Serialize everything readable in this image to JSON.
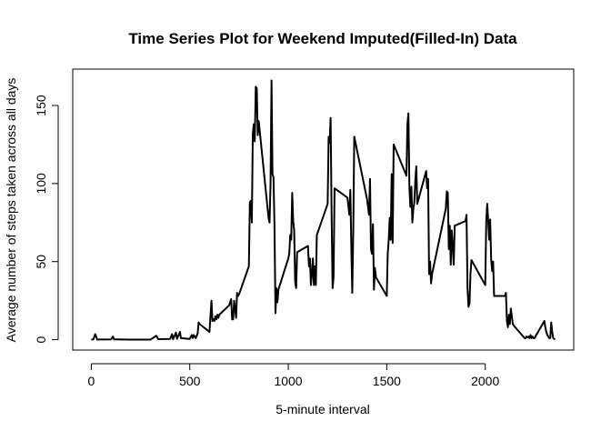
{
  "chart_data": {
    "type": "line",
    "title": "Time Series Plot for Weekend Imputed(Filled-In) Data",
    "xlabel": "5-minute interval",
    "ylabel": "Average number of steps taken across all days",
    "color": "#000000",
    "xlim": [
      -94.2,
      2449.2
    ],
    "ylim": [
      -6.66,
      173.3
    ],
    "xticks": [
      0,
      500,
      1000,
      1500,
      2000
    ],
    "yticks": [
      0,
      50,
      100,
      150
    ],
    "x": [
      0,
      10,
      20,
      30,
      100,
      110,
      115,
      200,
      300,
      330,
      340,
      400,
      410,
      415,
      430,
      435,
      450,
      455,
      500,
      510,
      515,
      520,
      530,
      540,
      545,
      550,
      600,
      610,
      615,
      620,
      625,
      630,
      635,
      640,
      645,
      650,
      700,
      710,
      715,
      720,
      725,
      730,
      735,
      740,
      745,
      750,
      800,
      805,
      810,
      815,
      820,
      825,
      830,
      835,
      840,
      845,
      850,
      900,
      905,
      910,
      915,
      920,
      925,
      930,
      935,
      940,
      945,
      950,
      1000,
      1005,
      1010,
      1015,
      1020,
      1025,
      1030,
      1035,
      1040,
      1045,
      1100,
      1105,
      1110,
      1115,
      1120,
      1125,
      1130,
      1135,
      1140,
      1145,
      1200,
      1205,
      1210,
      1215,
      1220,
      1225,
      1230,
      1235,
      1300,
      1305,
      1310,
      1315,
      1320,
      1325,
      1330,
      1335,
      1400,
      1405,
      1410,
      1415,
      1420,
      1425,
      1430,
      1435,
      1440,
      1445,
      1500,
      1505,
      1510,
      1515,
      1520,
      1525,
      1530,
      1535,
      1600,
      1605,
      1610,
      1615,
      1620,
      1625,
      1630,
      1635,
      1640,
      1645,
      1650,
      1655,
      1700,
      1705,
      1710,
      1715,
      1720,
      1725,
      1730,
      1800,
      1805,
      1810,
      1815,
      1820,
      1825,
      1830,
      1835,
      1840,
      1845,
      1900,
      1905,
      1910,
      1915,
      1920,
      1925,
      1930,
      2000,
      2005,
      2010,
      2015,
      2020,
      2025,
      2030,
      2035,
      2040,
      2045,
      2100,
      2105,
      2110,
      2115,
      2120,
      2125,
      2130,
      2135,
      2140,
      2145,
      2200,
      2205,
      2210,
      2215,
      2220,
      2225,
      2230,
      2235,
      2240,
      2245,
      2250,
      2300,
      2305,
      2310,
      2315,
      2320,
      2325,
      2330,
      2335,
      2340,
      2345,
      2350,
      2355
    ],
    "values": [
      0.2,
      0.1,
      3.5,
      0.1,
      0.2,
      2,
      0.2,
      0,
      0,
      2.5,
      0.3,
      0.5,
      3.5,
      0.3,
      4.5,
      0.5,
      5,
      1,
      0.5,
      3,
      1,
      3,
      1,
      4,
      11,
      10,
      5,
      25,
      12,
      13,
      12,
      15,
      13,
      16,
      14,
      16,
      22,
      26,
      13,
      13,
      25,
      20,
      14,
      30,
      28,
      29,
      47,
      88,
      89,
      75,
      132,
      138,
      127,
      162,
      161,
      131,
      140,
      78,
      75,
      100,
      166,
      106,
      104,
      73,
      17,
      33,
      24,
      32,
      52,
      55,
      67,
      64,
      94,
      76,
      70,
      37,
      33,
      56,
      60,
      47,
      52,
      35,
      42,
      52,
      35,
      47,
      35,
      67,
      87,
      130,
      126,
      142,
      80,
      33,
      40,
      97,
      91,
      86,
      80,
      96,
      60,
      30,
      70,
      130,
      90,
      85,
      80,
      103,
      58,
      55,
      74,
      32,
      46,
      40,
      28,
      55,
      64,
      78,
      64,
      106,
      62,
      125,
      105,
      138,
      145,
      97,
      85,
      98,
      75,
      84,
      88,
      102,
      111,
      87,
      108,
      97,
      103,
      42,
      50,
      36,
      42,
      84,
      95,
      94,
      58,
      73,
      48,
      70,
      60,
      48,
      73,
      76,
      80,
      33,
      21,
      23,
      42,
      51,
      35,
      75,
      87,
      76,
      64,
      77,
      52,
      44,
      50,
      28,
      28,
      30,
      12,
      8,
      16,
      10,
      20,
      15,
      10,
      9,
      1,
      1,
      2,
      1.5,
      2,
      1,
      3,
      1,
      2,
      1,
      1,
      12,
      8,
      5,
      3,
      2,
      1,
      1,
      11,
      5,
      1,
      0.5,
      0.2
    ]
  }
}
